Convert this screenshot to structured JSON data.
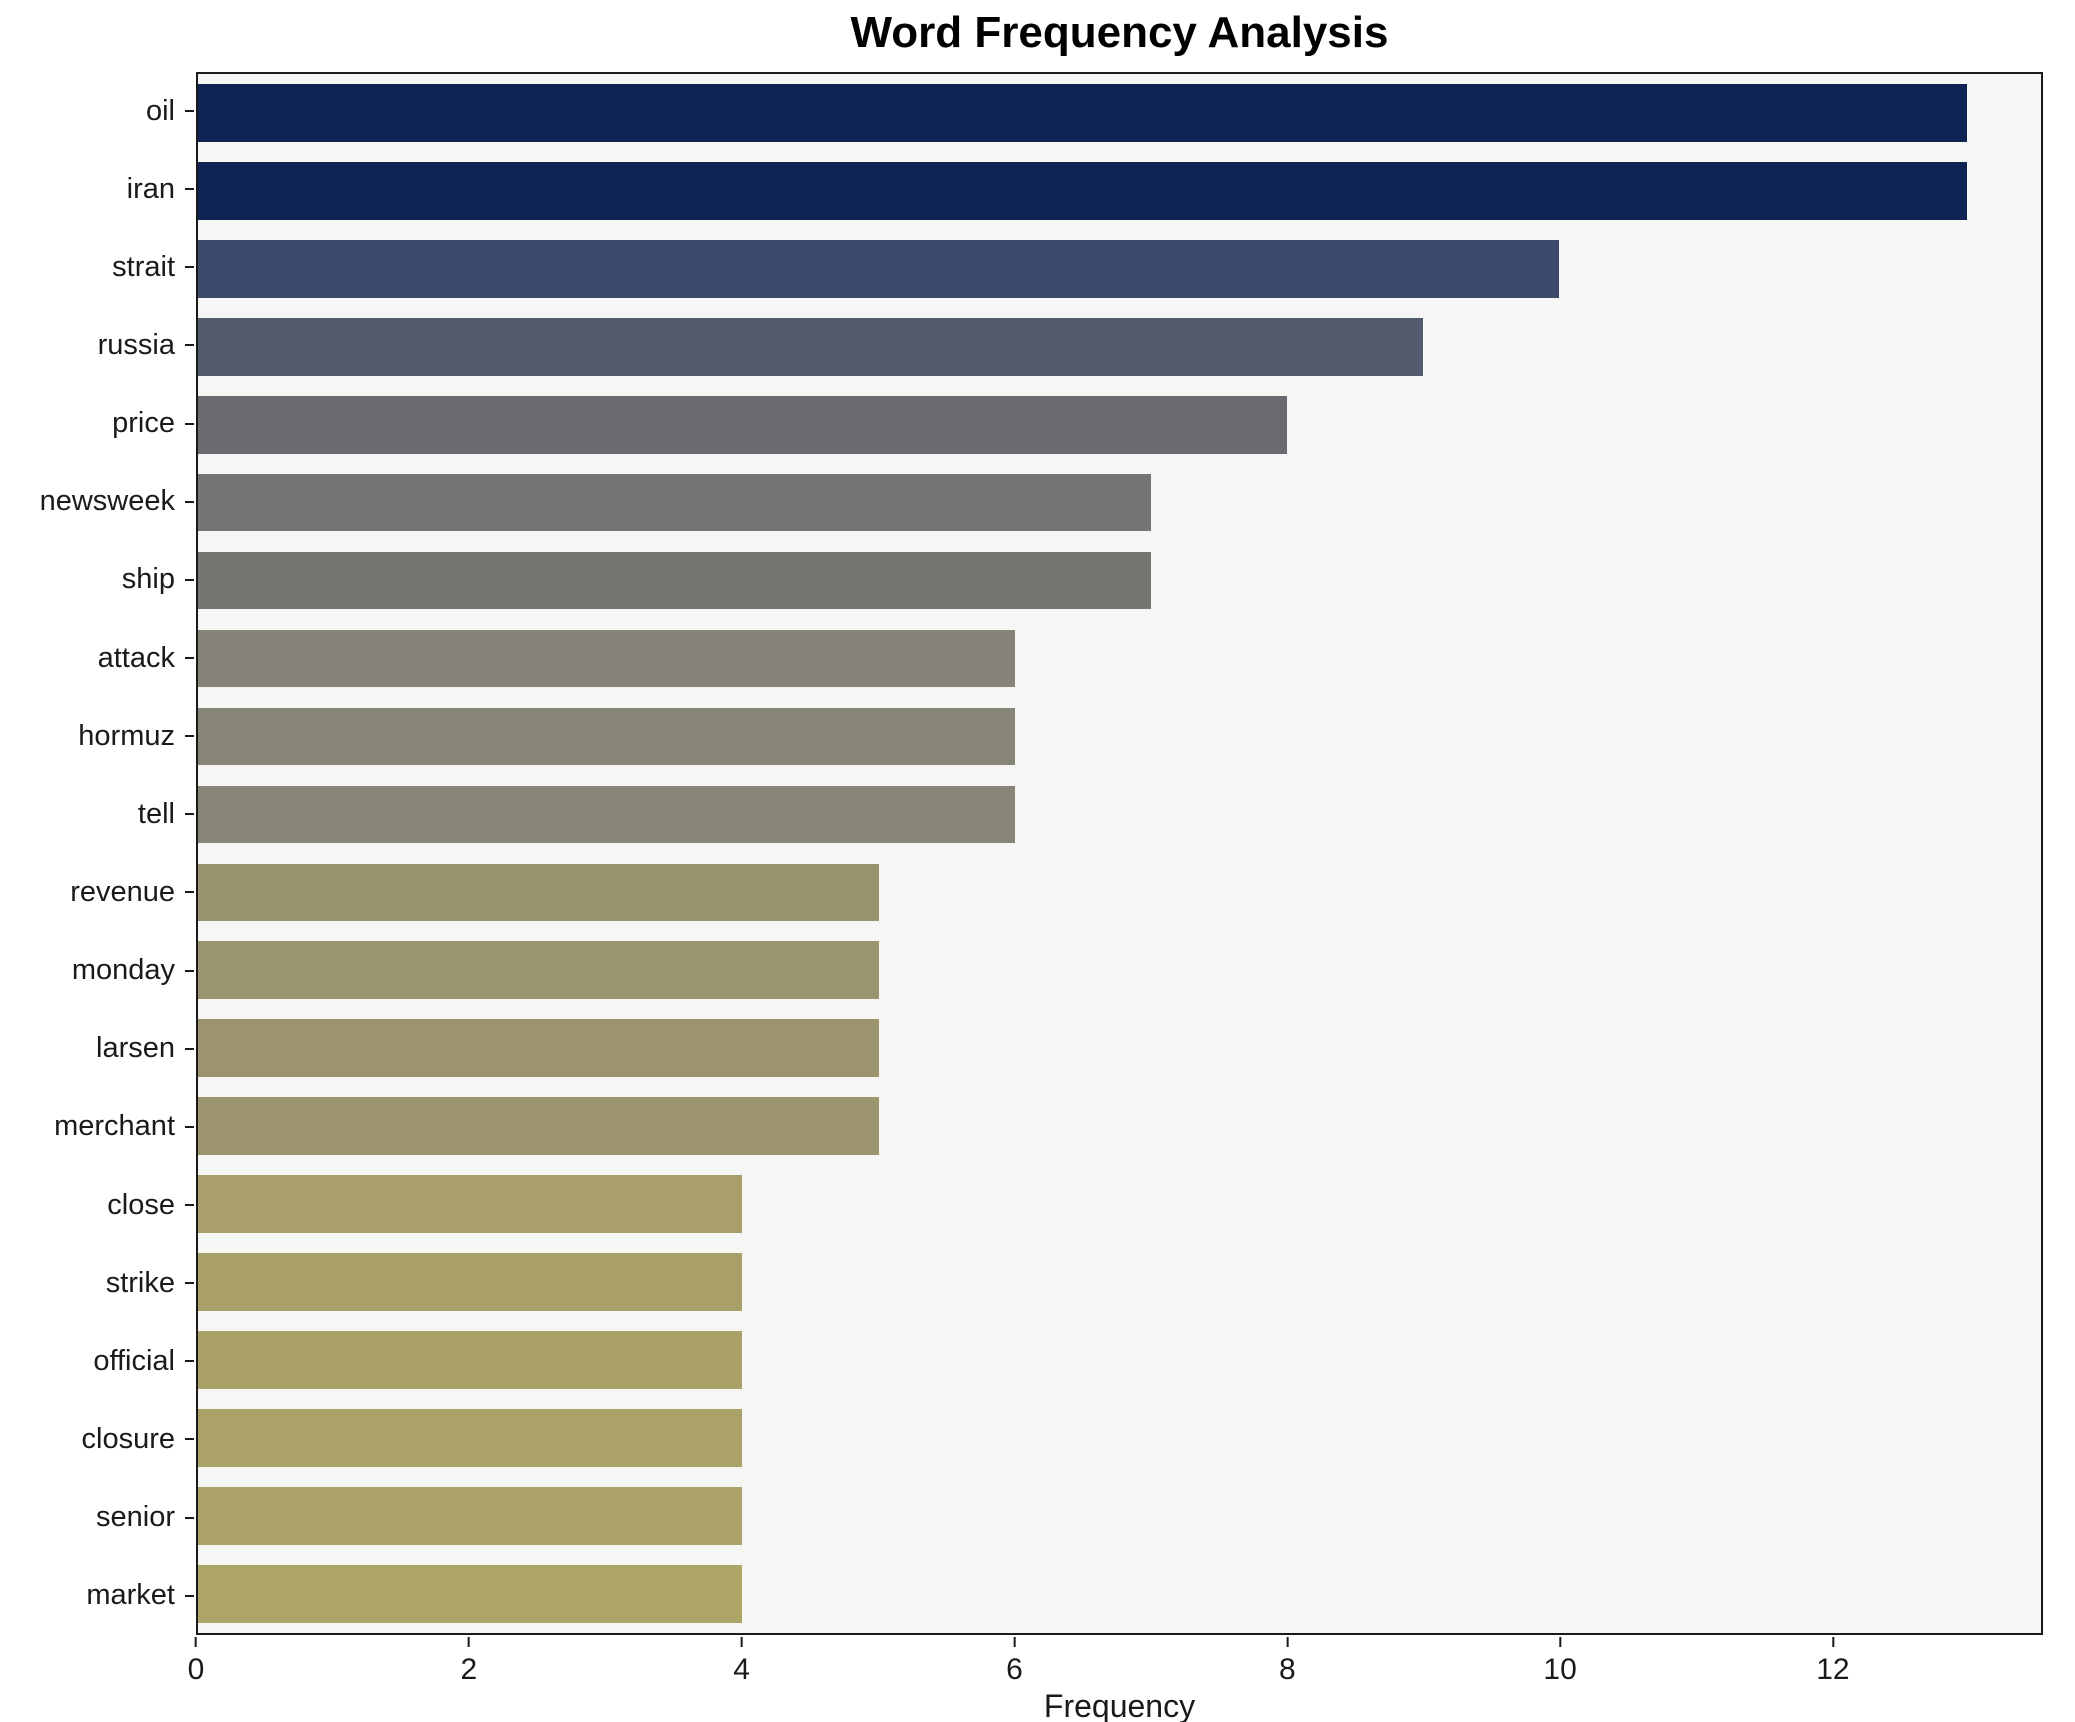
{
  "chart_data": {
    "type": "bar",
    "orientation": "horizontal",
    "title": "Word Frequency Analysis",
    "xlabel": "Frequency",
    "ylabel": "",
    "categories": [
      "oil",
      "iran",
      "strait",
      "russia",
      "price",
      "newsweek",
      "ship",
      "attack",
      "hormuz",
      "tell",
      "revenue",
      "monday",
      "larsen",
      "merchant",
      "close",
      "strike",
      "official",
      "closure",
      "senior",
      "market"
    ],
    "values": [
      13,
      13,
      10,
      9,
      8,
      7,
      7,
      6,
      6,
      6,
      5,
      5,
      5,
      5,
      4,
      4,
      4,
      4,
      4,
      4
    ],
    "colors": [
      "#0f2355",
      "#0f2355",
      "#3e4a6b",
      "#555b6e",
      "#696b70",
      "#757472",
      "#777572",
      "#868378",
      "#878478",
      "#888578",
      "#999370",
      "#9a9470",
      "#9b946f",
      "#9c956e",
      "#a89f6a",
      "#a9a069",
      "#aaa168",
      "#aba268",
      "#aca368",
      "#ada468"
    ],
    "xlim": [
      0,
      13.54
    ],
    "xticks": [
      0,
      2,
      4,
      6,
      8,
      10,
      12
    ],
    "grid": false,
    "legend": "none",
    "plot_background": "#f6f6f4",
    "figure_background": "#ffffff"
  }
}
